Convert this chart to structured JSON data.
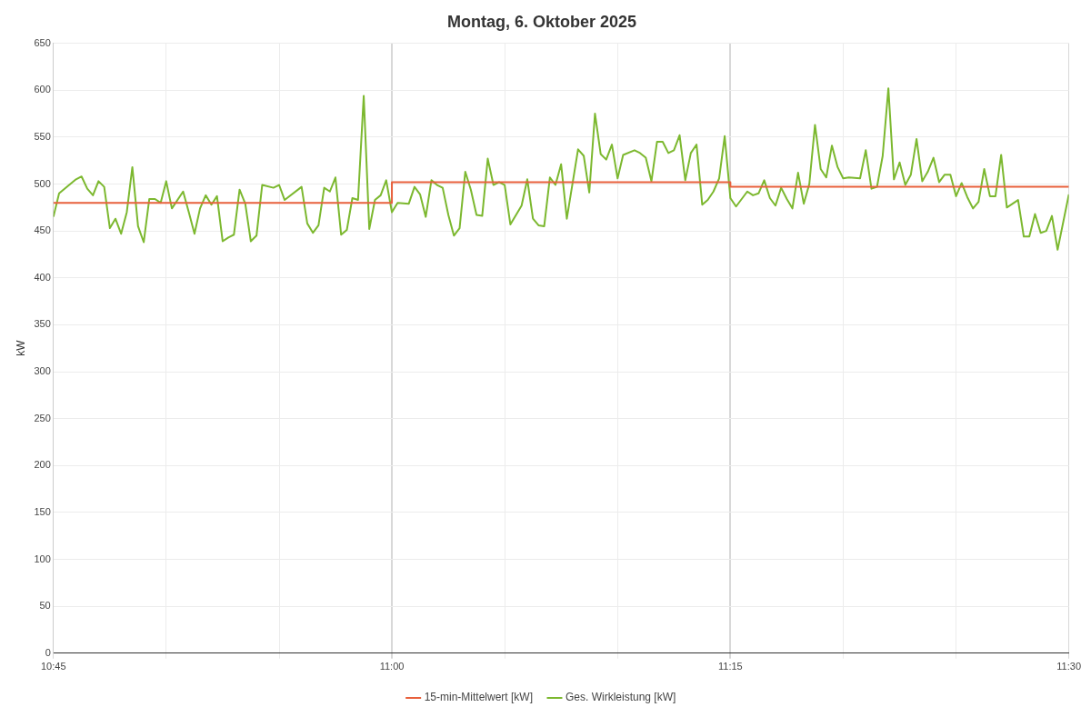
{
  "chart_data": {
    "type": "line",
    "title": "Montag, 6. Oktober 2025",
    "ylabel": "kW",
    "xlim": [
      10.75,
      11.5
    ],
    "xticks": [
      {
        "value": 10.75,
        "label": "10:45"
      },
      {
        "value": 10.8333,
        "label": null
      },
      {
        "value": 10.9167,
        "label": null
      },
      {
        "value": 11,
        "label": "11:00"
      },
      {
        "value": 11.0833,
        "label": null
      },
      {
        "value": 11.1667,
        "label": null
      },
      {
        "value": 11.25,
        "label": "11:15"
      },
      {
        "value": 11.3333,
        "label": null
      },
      {
        "value": 11.4167,
        "label": null
      },
      {
        "value": 11.5,
        "label": "11:30"
      }
    ],
    "ylim": [
      0,
      650
    ],
    "yticks": [
      0,
      50,
      100,
      150,
      200,
      250,
      300,
      350,
      400,
      450,
      500,
      550,
      600,
      650
    ],
    "grid": true,
    "legend": "bottom",
    "marker": "none",
    "line_style": "solid",
    "series": [
      {
        "name": "15-min-Mittelwert [kW]",
        "type": "step",
        "color": "#e8603c",
        "x": [
          10.75,
          11,
          11.25,
          11.5
        ],
        "values": [
          480,
          502,
          497,
          497
        ]
      },
      {
        "name": "Ges. Wirkleistung [kW]",
        "type": "line",
        "color": "#7cb82f",
        "x": [
          10.75,
          10.7542,
          10.7667,
          10.7708,
          10.775,
          10.7792,
          10.7833,
          10.7875,
          10.7917,
          10.7958,
          10.8,
          10.8042,
          10.8083,
          10.8125,
          10.8167,
          10.8208,
          10.825,
          10.8292,
          10.8333,
          10.8375,
          10.8458,
          10.85,
          10.8542,
          10.8583,
          10.8625,
          10.8667,
          10.8708,
          10.875,
          10.8792,
          10.8833,
          10.8875,
          10.8917,
          10.8958,
          10.9,
          10.9042,
          10.9125,
          10.9167,
          10.9208,
          10.9333,
          10.9375,
          10.9417,
          10.9458,
          10.95,
          10.9542,
          10.9583,
          10.9625,
          10.9667,
          10.9708,
          10.975,
          10.9792,
          10.9833,
          10.9875,
          10.9917,
          10.9958,
          11.0,
          11.0042,
          11.0125,
          11.0167,
          11.0208,
          11.025,
          11.0292,
          11.0333,
          11.0375,
          11.0417,
          11.0458,
          11.05,
          11.0542,
          11.0583,
          11.0625,
          11.0667,
          11.0708,
          11.075,
          11.0792,
          11.0833,
          11.0875,
          11.0958,
          11.1,
          11.1042,
          11.1083,
          11.1125,
          11.1167,
          11.1208,
          11.125,
          11.1292,
          11.1375,
          11.1417,
          11.1458,
          11.15,
          11.1542,
          11.1583,
          11.1625,
          11.1667,
          11.1708,
          11.1792,
          11.1833,
          11.1875,
          11.1917,
          11.1958,
          11.2,
          11.2042,
          11.2083,
          11.2125,
          11.2167,
          11.2208,
          11.225,
          11.2292,
          11.2333,
          11.2375,
          11.2417,
          11.2458,
          11.25,
          11.2542,
          11.2625,
          11.2667,
          11.2708,
          11.275,
          11.2792,
          11.2833,
          11.2875,
          11.2917,
          11.2958,
          11.3,
          11.3042,
          11.3083,
          11.3125,
          11.3167,
          11.3208,
          11.325,
          11.3292,
          11.3333,
          11.3375,
          11.3458,
          11.35,
          11.3542,
          11.3583,
          11.3625,
          11.3667,
          11.3708,
          11.375,
          11.3792,
          11.3833,
          11.3875,
          11.3917,
          11.3958,
          11.4,
          11.4042,
          11.4083,
          11.4125,
          11.4167,
          11.4208,
          11.425,
          11.4292,
          11.4333,
          11.4375,
          11.4417,
          11.4458,
          11.45,
          11.4542,
          11.4625,
          11.4667,
          11.4708,
          11.475,
          11.4792,
          11.4833,
          11.4875,
          11.4917,
          11.5
        ],
        "values": [
          465,
          490,
          505,
          508,
          495,
          488,
          503,
          497,
          453,
          463,
          447,
          470,
          518,
          455,
          438,
          484,
          484,
          480,
          503,
          474,
          492,
          470,
          447,
          474,
          488,
          478,
          487,
          439,
          443,
          446,
          494,
          479,
          439,
          445,
          499,
          496,
          499,
          483,
          497,
          458,
          448,
          456,
          496,
          492,
          507,
          446,
          451,
          485,
          483,
          594,
          452,
          483,
          488,
          504,
          470,
          480,
          479,
          497,
          489,
          465,
          504,
          499,
          496,
          467,
          445,
          453,
          513,
          494,
          467,
          466,
          527,
          499,
          502,
          499,
          457,
          477,
          505,
          463,
          456,
          455,
          507,
          499,
          521,
          463,
          537,
          530,
          491,
          575,
          532,
          526,
          542,
          506,
          531,
          536,
          533,
          528,
          503,
          545,
          545,
          533,
          536,
          552,
          504,
          533,
          542,
          478,
          483,
          492,
          506,
          551,
          485,
          476,
          492,
          488,
          490,
          504,
          485,
          477,
          496,
          484,
          474,
          512,
          479,
          500,
          563,
          516,
          507,
          541,
          518,
          506,
          507,
          506,
          536,
          495,
          497,
          530,
          602,
          505,
          523,
          499,
          510,
          548,
          503,
          513,
          528,
          502,
          510,
          510,
          487,
          501,
          486,
          474,
          481,
          516,
          487,
          487,
          531,
          475,
          483,
          444,
          444,
          468,
          448,
          450,
          466,
          430,
          489
        ]
      }
    ]
  }
}
